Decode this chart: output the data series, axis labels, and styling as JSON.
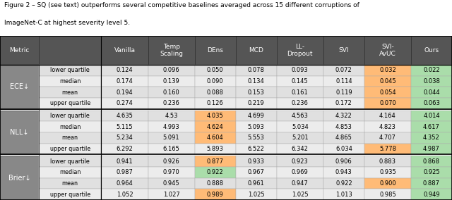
{
  "title_line1": "Figure 2 – SQ (see text) outperforms several competitive baselines averaged across 15 different corruptions of",
  "title_line2": "ImageNet-C at highest severity level 5.",
  "col_headers": [
    "Metric",
    "",
    "Vanilla",
    "Temp\nScaling",
    "DEns",
    "MCD",
    "LL-\nDropout",
    "SVI",
    "SVI-\nAvUC",
    "Ours"
  ],
  "metric_labels": [
    "ECE↓",
    "NLL↓",
    "Brier↓"
  ],
  "row_labels": [
    "lower quartile",
    "median",
    "mean",
    "upper quartile"
  ],
  "col_keys": [
    "Vanilla",
    "Temp\nScaling",
    "DEns",
    "MCD",
    "LL-\nDropout",
    "SVI",
    "SVI-\nAvUC",
    "Ours"
  ],
  "data": {
    "ECE": {
      "Vanilla": [
        "0.124",
        "0.174",
        "0.194",
        "0.274"
      ],
      "Temp\nScaling": [
        "0.096",
        "0.139",
        "0.160",
        "0.236"
      ],
      "DEns": [
        "0.050",
        "0.090",
        "0.088",
        "0.126"
      ],
      "MCD": [
        "0.078",
        "0.134",
        "0.153",
        "0.219"
      ],
      "LL-\nDropout": [
        "0.093",
        "0.145",
        "0.161",
        "0.236"
      ],
      "SVI": [
        "0.072",
        "0.114",
        "0.119",
        "0.172"
      ],
      "SVI-\nAvUC": [
        "0.032",
        "0.045",
        "0.054",
        "0.070"
      ],
      "Ours": [
        "0.022",
        "0.038",
        "0.044",
        "0.063"
      ]
    },
    "NLL": {
      "Vanilla": [
        "4.635",
        "5.115",
        "5.234",
        "6.292"
      ],
      "Temp\nScaling": [
        "4.53",
        "4.993",
        "5.091",
        "6.165"
      ],
      "DEns": [
        "4.035",
        "4.624",
        "4.604",
        "5.893"
      ],
      "MCD": [
        "4.699",
        "5.093",
        "5.553",
        "6.522"
      ],
      "LL-\nDropout": [
        "4.563",
        "5.034",
        "5.201",
        "6.342"
      ],
      "SVI": [
        "4.322",
        "4.853",
        "4.865",
        "6.034"
      ],
      "SVI-\nAvUC": [
        "4.164",
        "4.823",
        "4.707",
        "5.778"
      ],
      "Ours": [
        "4.014",
        "4.617",
        "4.352",
        "4.987"
      ]
    },
    "Brier": {
      "Vanilla": [
        "0.941",
        "0.987",
        "0.964",
        "1.052"
      ],
      "Temp\nScaling": [
        "0.926",
        "0.970",
        "0.945",
        "1.027"
      ],
      "DEns": [
        "0.877",
        "0.922",
        "0.888",
        "0.989"
      ],
      "MCD": [
        "0.933",
        "0.967",
        "0.961",
        "1.025"
      ],
      "LL-\nDropout": [
        "0.923",
        "0.969",
        "0.947",
        "1.025"
      ],
      "SVI": [
        "0.906",
        "0.943",
        "0.922",
        "1.013"
      ],
      "SVI-\nAvUC": [
        "0.883",
        "0.935",
        "0.900",
        "0.985"
      ],
      "Ours": [
        "0.868",
        "0.925",
        "0.887",
        "0.949"
      ]
    }
  },
  "cell_colors": {
    "ECE": {
      "SVI-\nAvUC": [
        "orange",
        "orange",
        "orange",
        "orange"
      ],
      "Ours": [
        "green",
        "green",
        "green",
        "green"
      ]
    },
    "NLL": {
      "DEns": [
        "orange",
        "orange",
        "orange",
        "none"
      ],
      "SVI-\nAvUC": [
        "none",
        "none",
        "none",
        "orange"
      ],
      "Ours": [
        "green",
        "green",
        "green",
        "green"
      ]
    },
    "Brier": {
      "DEns": [
        "orange",
        "green",
        "none",
        "orange"
      ],
      "SVI-\nAvUC": [
        "none",
        "none",
        "orange",
        "none"
      ],
      "Ours": [
        "green",
        "green",
        "green",
        "green"
      ]
    }
  },
  "header_bg": "#555555",
  "header_fg": "#FFFFFF",
  "metric_bg": "#888888",
  "metric_fg": "#FFFFFF",
  "rowlabel_bg0": "#E0E0E0",
  "rowlabel_bg1": "#ECECEC",
  "orange_color": "#FFBB77",
  "green_color": "#AADDAA",
  "title_fontsize": 6.5,
  "header_fontsize": 6.5,
  "cell_fontsize": 6.0,
  "metric_fontsize": 7.0,
  "rowlabel_fontsize": 5.8
}
